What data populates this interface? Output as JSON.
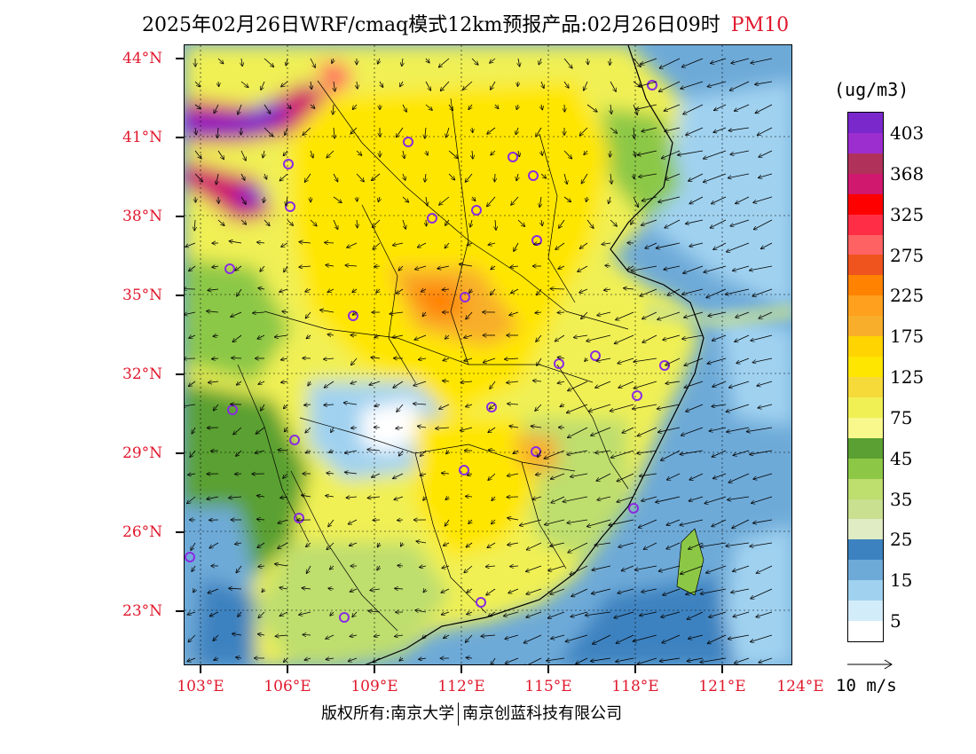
{
  "title": {
    "main": "2025年02月26日WRF/cmaq模式12km预报产品:02月26日09时",
    "pollutant": "PM10"
  },
  "latitude_labels": [
    "44°N",
    "41°N",
    "38°N",
    "35°N",
    "32°N",
    "29°N",
    "26°N",
    "23°N"
  ],
  "longitude_labels": [
    "103°E",
    "106°E",
    "109°E",
    "112°E",
    "115°E",
    "118°E",
    "121°E",
    "124°E"
  ],
  "legend": {
    "unit": "(ug/m3)",
    "levels": [
      {
        "label": "403",
        "color": "#7a28cc"
      },
      {
        "label": "",
        "color": "#9c2ed0"
      },
      {
        "label": "368",
        "color": "#b0325a"
      },
      {
        "label": "",
        "color": "#d0186e"
      },
      {
        "label": "325",
        "color": "#ff0000"
      },
      {
        "label": "",
        "color": "#ff2e46"
      },
      {
        "label": "275",
        "color": "#ff6262"
      },
      {
        "label": "",
        "color": "#f0541e"
      },
      {
        "label": "225",
        "color": "#ff8200"
      },
      {
        "label": "",
        "color": "#ffa01e"
      },
      {
        "label": "175",
        "color": "#f8ae2a"
      },
      {
        "label": "",
        "color": "#ffd400"
      },
      {
        "label": "125",
        "color": "#ffe600"
      },
      {
        "label": "",
        "color": "#f5da3a"
      },
      {
        "label": "75",
        "color": "#f0f055"
      },
      {
        "label": "",
        "color": "#f8f88c"
      },
      {
        "label": "45",
        "color": "#5aa032"
      },
      {
        "label": "",
        "color": "#8cc846"
      },
      {
        "label": "35",
        "color": "#bede6e"
      },
      {
        "label": "",
        "color": "#c8e090"
      },
      {
        "label": "25",
        "color": "#e0ecc4"
      },
      {
        "label": "",
        "color": "#3c82c0"
      },
      {
        "label": "15",
        "color": "#6eaad8"
      },
      {
        "label": "",
        "color": "#a0d2f0"
      },
      {
        "label": "5",
        "color": "#d2ecfa"
      },
      {
        "label": "",
        "color": "#ffffff"
      }
    ]
  },
  "wind_key": {
    "label": "10 m/s"
  },
  "footer": {
    "copyright": "版权所有:南京大学",
    "company": "南京创蓝科技有限公司"
  },
  "icons": {
    "city_marker": "city-circle-icon",
    "wind_arrow": "wind-arrow-icon"
  }
}
